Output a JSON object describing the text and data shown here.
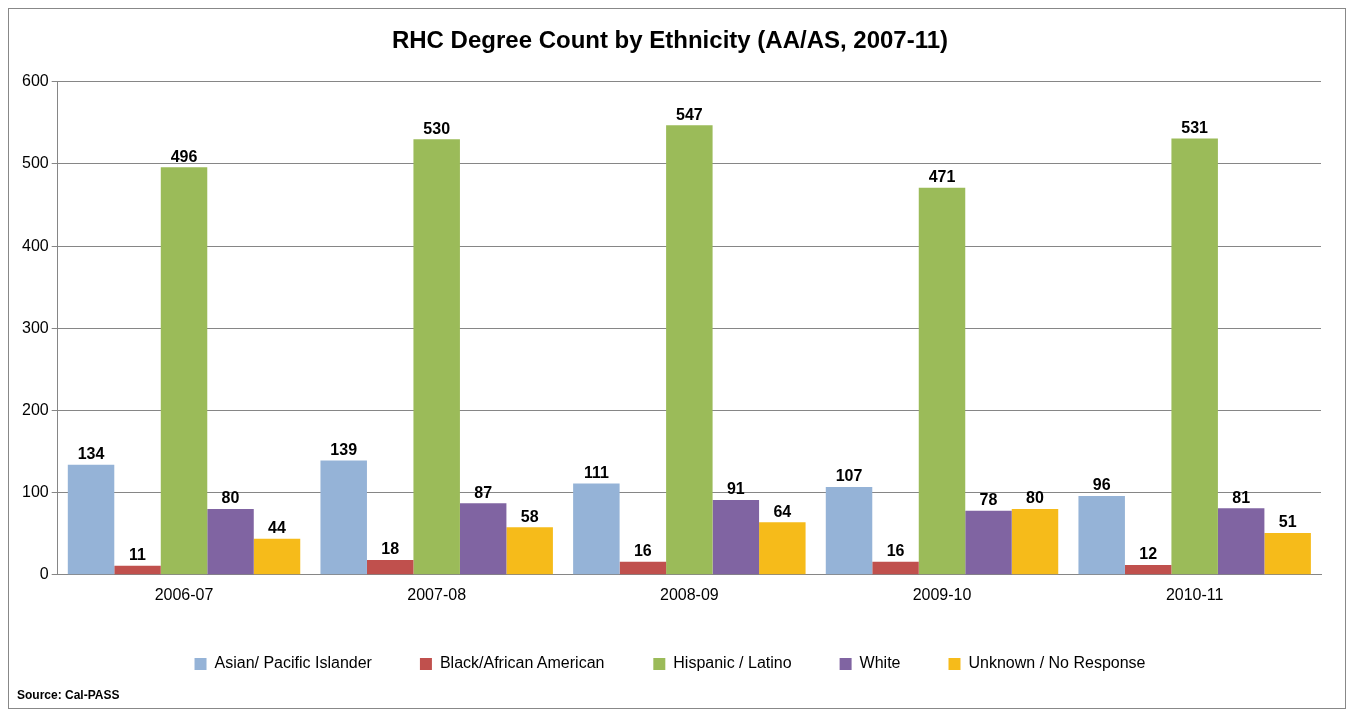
{
  "chart_data": {
    "type": "bar",
    "title": "RHC Degree Count by Ethnicity (AA/AS, 2007-11)",
    "categories": [
      "2006-07",
      "2007-08",
      "2008-09",
      "2009-10",
      "2010-11"
    ],
    "series": [
      {
        "name": "Asian/ Pacific Islander",
        "color": "#95b3d7",
        "values": [
          134,
          139,
          111,
          107,
          96
        ]
      },
      {
        "name": "Black/African American",
        "color": "#c0504d",
        "values": [
          11,
          18,
          16,
          16,
          12
        ]
      },
      {
        "name": "Hispanic / Latino",
        "color": "#9bbb59",
        "values": [
          496,
          530,
          547,
          471,
          531
        ]
      },
      {
        "name": "White",
        "color": "#8064a2",
        "values": [
          80,
          87,
          91,
          78,
          81
        ]
      },
      {
        "name": "Unknown / No Response",
        "color": "#f6bb1a",
        "values": [
          44,
          58,
          64,
          80,
          51
        ]
      }
    ],
    "ylim": [
      0,
      600
    ],
    "yticks": [
      0,
      100,
      200,
      300,
      400,
      500,
      600
    ],
    "grid": "y",
    "legend": "bottom",
    "data_labels": true,
    "annotations": [
      "Source: Cal-PASS"
    ]
  }
}
